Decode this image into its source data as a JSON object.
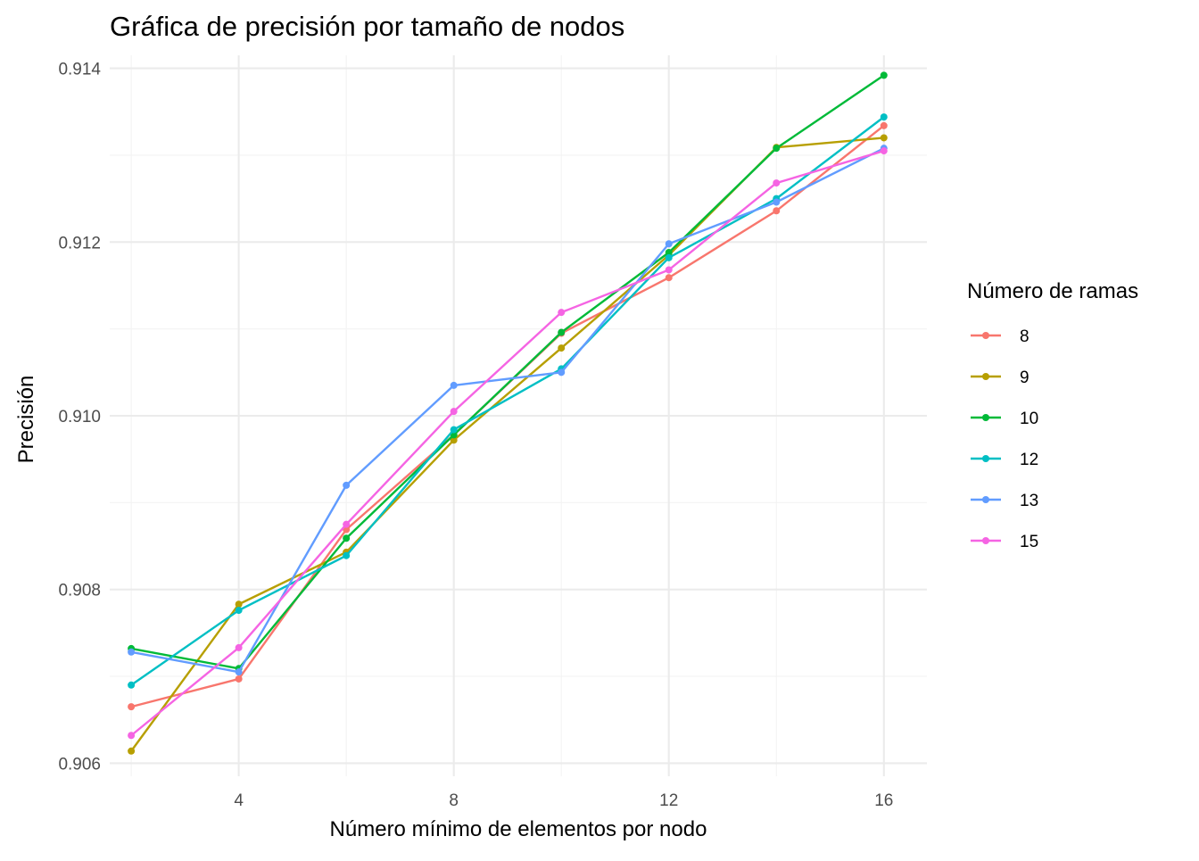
{
  "chart_data": {
    "type": "line",
    "title": "Gráfica de precisión por tamaño de nodos",
    "xlabel": "Número mínimo de elementos por nodo",
    "ylabel": "Precisión",
    "xlim": [
      1.6,
      16.8
    ],
    "ylim": [
      0.90585,
      0.91415
    ],
    "x_ticks": [
      4,
      8,
      12,
      16
    ],
    "x_tick_labels": [
      "4",
      "8",
      "12",
      "16"
    ],
    "x_minor_ticks": [
      2,
      6,
      10,
      14
    ],
    "y_ticks": [
      0.906,
      0.908,
      0.91,
      0.912,
      0.914
    ],
    "y_tick_labels": [
      "0.906",
      "0.908",
      "0.910",
      "0.912",
      "0.914"
    ],
    "y_minor_ticks": [
      0.907,
      0.909,
      0.911,
      0.913
    ],
    "grid": true,
    "legend_title": "Número de ramas",
    "legend_position": "right",
    "x": [
      2,
      4,
      6,
      8,
      10,
      12,
      14,
      16
    ],
    "series": [
      {
        "name": " 8",
        "color": "#F8766D",
        "values": [
          0.90665,
          0.90697,
          0.90869,
          0.90978,
          0.91095,
          0.91159,
          0.91236,
          0.91334
        ]
      },
      {
        "name": " 9",
        "color": "#B79F00",
        "values": [
          0.90614,
          0.90783,
          0.90843,
          0.90972,
          0.91078,
          0.91185,
          0.91309,
          0.9132
        ]
      },
      {
        "name": "10",
        "color": "#00BA38",
        "values": [
          0.90732,
          0.90709,
          0.90859,
          0.90978,
          0.91096,
          0.91188,
          0.91308,
          0.91392
        ]
      },
      {
        "name": "12",
        "color": "#00BFC4",
        "values": [
          0.9069,
          0.90776,
          0.90839,
          0.90984,
          0.91054,
          0.91182,
          0.9125,
          0.91344
        ]
      },
      {
        "name": "13",
        "color": "#619CFF",
        "values": [
          0.90728,
          0.90705,
          0.9092,
          0.91035,
          0.9105,
          0.91198,
          0.91246,
          0.91308
        ]
      },
      {
        "name": "15",
        "color": "#F564E3",
        "values": [
          0.90632,
          0.90733,
          0.90875,
          0.91005,
          0.91119,
          0.91168,
          0.91268,
          0.91305
        ]
      }
    ]
  }
}
